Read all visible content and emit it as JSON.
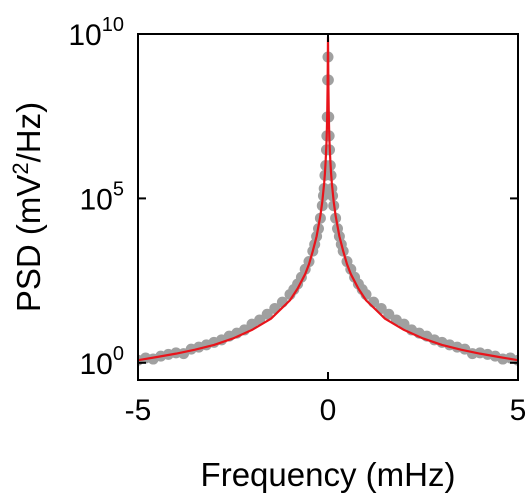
{
  "chart_data": {
    "type": "scatter",
    "title": "",
    "xlabel": "Frequency (mHz)",
    "ylabel": {
      "prefix": "PSD (mV",
      "sup": "2",
      "suffix": "/Hz)"
    },
    "xlim": [
      -5,
      5
    ],
    "ylim": [
      0.3,
      10000000000.0
    ],
    "yscale": "log",
    "grid": false,
    "x_ticks": [
      {
        "value": -5,
        "label": "-5"
      },
      {
        "value": 0,
        "label": "0"
      },
      {
        "value": 5,
        "label": "5"
      }
    ],
    "y_ticks": [
      {
        "value": 1,
        "base": "10",
        "exp": "0"
      },
      {
        "value": 100000,
        "base": "10",
        "exp": "5"
      },
      {
        "value": 10000000000,
        "base": "10",
        "exp": "10"
      }
    ],
    "series": [
      {
        "kind": "scatter",
        "color": "#a0a0a0",
        "x": [
          -5.0,
          -4.8,
          -4.6,
          -4.4,
          -4.2,
          -4.0,
          -3.8,
          -3.6,
          -3.4,
          -3.2,
          -3.0,
          -2.8,
          -2.6,
          -2.4,
          -2.2,
          -2.0,
          -1.8,
          -1.6,
          -1.4,
          -1.2,
          -1.0,
          -0.9,
          -0.8,
          -0.7,
          -0.6,
          -0.5,
          -0.4,
          -0.35,
          -0.3,
          -0.25,
          -0.2,
          -0.15,
          -0.12,
          -0.1,
          -0.08,
          -0.06,
          -0.04,
          -0.03,
          -0.02,
          -0.01,
          0.0,
          0.01,
          0.02,
          0.03,
          0.04,
          0.06,
          0.08,
          0.1,
          0.12,
          0.15,
          0.2,
          0.25,
          0.3,
          0.35,
          0.4,
          0.5,
          0.6,
          0.7,
          0.8,
          0.9,
          1.0,
          1.2,
          1.4,
          1.6,
          1.8,
          2.0,
          2.2,
          2.4,
          2.6,
          2.8,
          3.0,
          3.2,
          3.4,
          3.6,
          3.8,
          4.0,
          4.2,
          4.4,
          4.6,
          4.8,
          5.0
        ],
        "y": [
          1.2,
          1.4,
          1.3,
          1.6,
          1.8,
          2.0,
          1.9,
          2.6,
          3.0,
          3.5,
          4.2,
          5.0,
          6.5,
          8.0,
          10,
          15,
          20,
          30,
          45,
          70,
          120,
          170,
          250,
          400,
          700,
          1200,
          2500,
          4000,
          7000,
          12000,
          25000,
          60000,
          120000,
          200000,
          500000,
          1000000,
          3000000,
          8000000,
          30000000,
          400000000,
          2000000000,
          400000000,
          30000000,
          8000000,
          3000000,
          1000000,
          500000,
          200000,
          120000,
          60000,
          25000,
          12000,
          7000,
          4000,
          2500,
          1200,
          700,
          400,
          250,
          170,
          120,
          70,
          45,
          30,
          20,
          15,
          10,
          8.0,
          6.5,
          5.0,
          4.2,
          3.5,
          3.0,
          2.6,
          1.9,
          2.0,
          1.8,
          1.6,
          1.3,
          1.4,
          1.2
        ]
      },
      {
        "kind": "line",
        "color": "#e8141b",
        "x": [
          -5.0,
          -4.5,
          -4.0,
          -3.5,
          -3.0,
          -2.5,
          -2.0,
          -1.5,
          -1.0,
          -0.8,
          -0.6,
          -0.5,
          -0.4,
          -0.3,
          -0.2,
          -0.15,
          -0.1,
          -0.08,
          -0.06,
          -0.04,
          -0.03,
          -0.02,
          -0.01,
          -0.005,
          0.0,
          0.005,
          0.01,
          0.02,
          0.03,
          0.04,
          0.06,
          0.08,
          0.1,
          0.15,
          0.2,
          0.3,
          0.4,
          0.5,
          0.6,
          0.8,
          1.0,
          1.5,
          2.0,
          2.5,
          3.0,
          3.5,
          4.0,
          4.5,
          5.0
        ],
        "y": [
          1.2,
          1.5,
          1.9,
          2.5,
          3.5,
          5.5,
          10,
          22,
          80,
          180,
          500,
          1000,
          2500,
          7000,
          30000,
          80000,
          300000,
          600000,
          1500000,
          5000000,
          12000000,
          40000000,
          300000000,
          1500000000,
          8000000000,
          1500000000,
          300000000,
          40000000,
          12000000,
          5000000,
          1500000,
          600000,
          300000,
          80000,
          30000,
          7000,
          2500,
          1000,
          500,
          180,
          80,
          22,
          10,
          5.5,
          3.5,
          2.5,
          1.9,
          1.5,
          1.2
        ]
      }
    ]
  }
}
